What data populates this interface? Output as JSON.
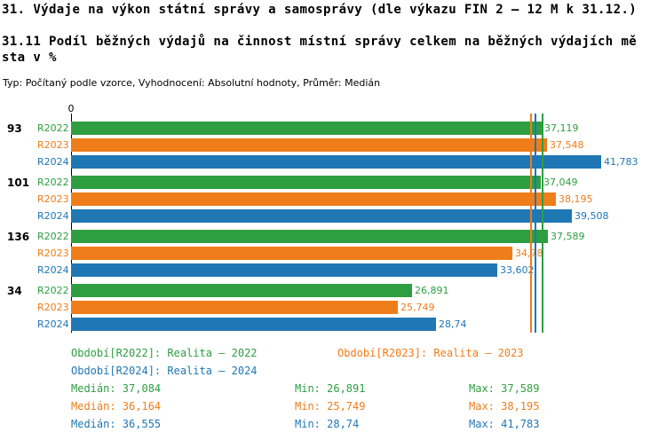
{
  "page": {
    "subtitle_line1": "31.11 Podíl běžných výdajů na činnost místní správy celkem na běžných výdajích mě",
    "subtitle_line2": "sta v %"
  },
  "chart_data": {
    "type": "bar",
    "orientation": "horizontal",
    "title": "31. Výdaje na výkon státní správy a samosprávy (dle výkazu FIN 2 – 12 M k 31.12.)",
    "subtitle": "31.11 Podíl běžných výdajů na činnost místní správy celkem na běžných výdajích města v %",
    "meta": "Typ: Počítaný podle vzorce, Vyhodnocení: Absolutní hodnoty, Průměr: Medián",
    "axis_zero_label": "0",
    "xlim": [
      0,
      42
    ],
    "grid": false,
    "legend_position": "bottom",
    "categories": [
      "93",
      "101",
      "136",
      "34"
    ],
    "series": [
      {
        "name": "R2022",
        "color": "#2e9e41",
        "values": [
          37.119,
          37.049,
          37.589,
          26.891
        ],
        "value_labels": [
          "37,119",
          "37,049",
          "37,589",
          "26,891"
        ],
        "median": 37.084,
        "legend": "Období[R2022]: Realita – 2022",
        "stats": {
          "median": "Medián: 37,084",
          "min": "Min: 26,891",
          "max": "Max: 37,589"
        }
      },
      {
        "name": "R2023",
        "color": "#ef7d1a",
        "values": [
          37.548,
          38.195,
          34.78,
          25.749
        ],
        "value_labels": [
          "37,548",
          "38,195",
          "34,78",
          "25,749"
        ],
        "median": 36.164,
        "legend": "Období[R2023]: Realita – 2023",
        "stats": {
          "median": "Medián: 36,164",
          "min": "Min: 25,749",
          "max": "Max: 38,195"
        }
      },
      {
        "name": "R2024",
        "color": "#1f77b4",
        "values": [
          41.783,
          39.508,
          33.602,
          28.74
        ],
        "value_labels": [
          "41,783",
          "39,508",
          "33,602",
          "28,74"
        ],
        "median": 36.555,
        "legend": "Období[R2024]: Realita – 2024",
        "stats": {
          "median": "Medián: 36,555",
          "min": "Min: 28,74",
          "max": "Max: 41,783"
        }
      }
    ]
  }
}
